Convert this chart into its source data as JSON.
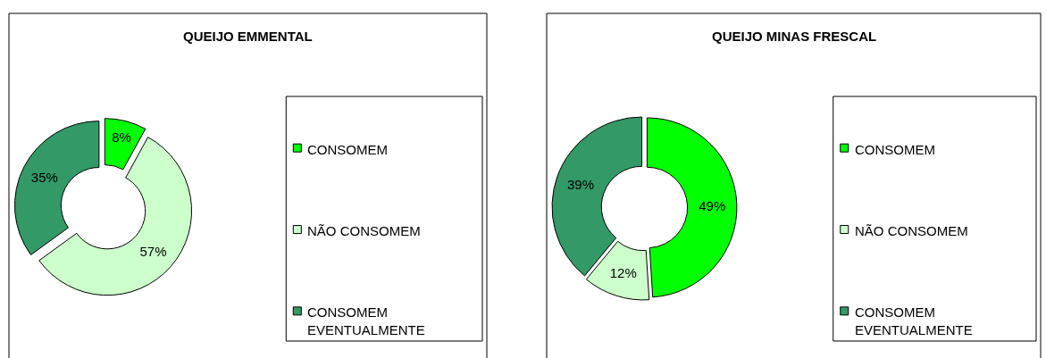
{
  "chart_data": [
    {
      "type": "donut",
      "title": "QUEIJO EMMENTAL",
      "categories": [
        "CONSOMEM",
        "NÃO CONSOMEM",
        "CONSOMEM EVENTUALMENTE"
      ],
      "values": [
        8,
        57,
        35
      ],
      "value_labels": [
        "8%",
        "57%",
        "35%"
      ],
      "colors": [
        "#00ff00",
        "#ccffcc",
        "#339966"
      ],
      "legend": "right"
    },
    {
      "type": "donut",
      "title": "QUEIJO MINAS FRESCAL",
      "categories": [
        "CONSOMEM",
        "NÃO CONSOMEM",
        "CONSOMEM EVENTUALMENTE"
      ],
      "values": [
        49,
        12,
        39
      ],
      "value_labels": [
        "49%",
        "12%",
        "39%"
      ],
      "colors": [
        "#00ff00",
        "#ccffcc",
        "#339966"
      ],
      "legend": "right"
    }
  ]
}
